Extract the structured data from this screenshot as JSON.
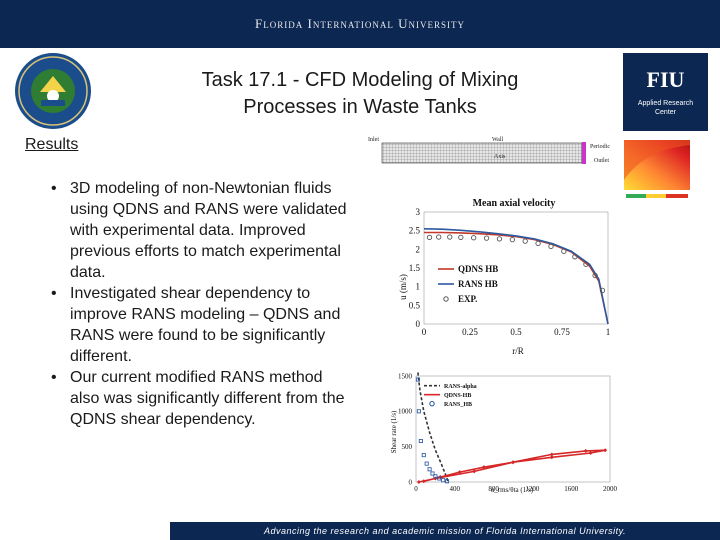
{
  "header": {
    "university": "Florida International University",
    "background_color": "#0b2752"
  },
  "logos": {
    "doe_seal_icon": "doe-seal-icon",
    "fiu": {
      "mark": "FIU",
      "subtitle_line1": "Applied Research",
      "subtitle_line2": "Center"
    }
  },
  "slide": {
    "title_line1": "Task 17.1 - CFD Modeling of Mixing",
    "title_line2": "Processes in Waste Tanks",
    "section_label": "Results",
    "bullets": [
      "3D modeling of non-Newtonian fluids using QDNS and RANS were validated with experimental data.  Improved previous efforts to match experimental data.",
      "Investigated shear dependency to improve RANS modeling – QDNS and RANS were found to be significantly different.",
      "Our current modified RANS method also was significantly different from the QDNS shear dependency."
    ]
  },
  "domain_figure": {
    "inlet_label": "Inlet",
    "wall_label": "Wall",
    "axis_label": "Axis",
    "periodic_label": "Periodic",
    "outlet_label": "Outlet"
  },
  "chart_data": [
    {
      "type": "line",
      "title": "Mean axial velocity",
      "xlabel": "r/R",
      "ylabel": "u (m/s)",
      "xlim": [
        0,
        1
      ],
      "ylim": [
        0,
        3
      ],
      "x_ticks": [
        "0",
        "0.25",
        "0.5",
        "0.75",
        "1"
      ],
      "y_ticks": [
        "0",
        "0.5",
        "1",
        "1.5",
        "2",
        "2.5",
        "3"
      ],
      "legend_position": "bottom-left",
      "series": [
        {
          "name": "QDNS HB",
          "style": "line",
          "color": "#c0392b",
          "x": [
            0,
            0.1,
            0.2,
            0.3,
            0.4,
            0.5,
            0.6,
            0.7,
            0.8,
            0.9,
            0.95,
            1.0
          ],
          "y": [
            2.45,
            2.45,
            2.44,
            2.42,
            2.39,
            2.34,
            2.26,
            2.13,
            1.93,
            1.55,
            1.15,
            0
          ]
        },
        {
          "name": "RANS HB",
          "style": "line",
          "color": "#2c5aa0",
          "x": [
            0,
            0.1,
            0.2,
            0.3,
            0.4,
            0.5,
            0.6,
            0.7,
            0.8,
            0.9,
            0.95,
            1.0
          ],
          "y": [
            2.55,
            2.54,
            2.51,
            2.47,
            2.42,
            2.36,
            2.28,
            2.15,
            1.95,
            1.6,
            1.2,
            0
          ]
        },
        {
          "name": "EXP.",
          "style": "markers",
          "color": "#555555",
          "x": [
            0.03,
            0.08,
            0.14,
            0.2,
            0.27,
            0.34,
            0.41,
            0.48,
            0.55,
            0.62,
            0.69,
            0.76,
            0.82,
            0.88,
            0.93,
            0.97
          ],
          "y": [
            2.32,
            2.33,
            2.33,
            2.32,
            2.31,
            2.3,
            2.28,
            2.26,
            2.22,
            2.16,
            2.08,
            1.95,
            1.8,
            1.6,
            1.3,
            0.9
          ]
        }
      ]
    },
    {
      "type": "line",
      "title": "",
      "xlabel": "u_rms/θta (1/s)",
      "ylabel": "Shear rate (1/s)",
      "xlim": [
        0,
        2000
      ],
      "ylim": [
        0,
        1500
      ],
      "x_ticks": [
        "0",
        "400",
        "800",
        "1200",
        "1600",
        "2000"
      ],
      "y_ticks": [
        "0",
        "500",
        "1000",
        "1500"
      ],
      "legend_position": "top-left",
      "series": [
        {
          "name": "RANS-alpha",
          "style": "dashed",
          "color": "#333333",
          "x": [
            20,
            40,
            80,
            140,
            200,
            260,
            300,
            320,
            330
          ],
          "y": [
            1550,
            1300,
            1000,
            700,
            450,
            260,
            120,
            50,
            0
          ]
        },
        {
          "name": "QDNS-HB",
          "style": "line-markers",
          "color": "#d62728",
          "x": [
            30,
            200,
            600,
            1000,
            1400,
            1750,
            1950,
            1800,
            1400,
            1000,
            700,
            450,
            250,
            80
          ],
          "y": [
            0,
            50,
            150,
            280,
            390,
            440,
            450,
            410,
            350,
            280,
            210,
            140,
            70,
            10
          ]
        },
        {
          "name": "RANS_HB",
          "style": "markers",
          "color": "#1f4fa0",
          "x": [
            20,
            30,
            50,
            80,
            110,
            140,
            170,
            200,
            240,
            280,
            320
          ],
          "y": [
            1450,
            1000,
            580,
            380,
            260,
            180,
            120,
            80,
            50,
            25,
            10
          ]
        }
      ]
    }
  ],
  "footer": {
    "text": "Advancing the research and academic mission of Florida International University."
  }
}
